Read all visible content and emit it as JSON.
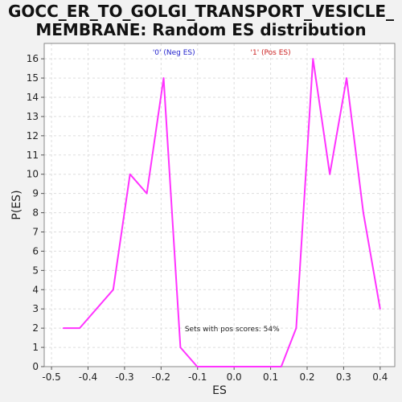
{
  "title_line1": "GOCC_ER_TO_GOLGI_TRANSPORT_VESICLE_",
  "title_line2": "MEMBRANE: Random ES distribution",
  "chart_data": {
    "type": "line",
    "xlabel": "ES",
    "ylabel": "P(ES)",
    "xlim": [
      -0.52,
      0.44
    ],
    "ylim": [
      0,
      16.8
    ],
    "grid": true,
    "x_ticks": [
      -0.5,
      -0.4,
      -0.3,
      -0.2,
      -0.1,
      0.0,
      0.1,
      0.2,
      0.3,
      0.4
    ],
    "x_tick_labels": [
      "-0.5",
      "-0.4",
      "-0.3",
      "-0.2",
      "-0.1",
      "0.0",
      "0.1",
      "0.2",
      "0.3",
      "0.4"
    ],
    "y_ticks": [
      0,
      1,
      2,
      3,
      4,
      5,
      6,
      7,
      8,
      9,
      10,
      11,
      12,
      13,
      14,
      15,
      16
    ],
    "legend": [
      {
        "label": "'0' (Neg ES)",
        "color": "#2222cc"
      },
      {
        "label": "'1' (Pos ES)",
        "color": "#cc2222"
      }
    ],
    "annotation": "Sets with pos scores: 54%",
    "series": [
      {
        "color": "#ff33ff",
        "x": [
          -0.468,
          -0.423,
          -0.331,
          -0.285,
          -0.239,
          -0.193,
          -0.147,
          -0.101,
          -0.055,
          0.0,
          0.037,
          0.083,
          0.129,
          0.17,
          0.216,
          0.262,
          0.308,
          0.354,
          0.4
        ],
        "y": [
          2,
          2,
          4,
          10,
          9,
          15,
          1,
          0,
          0,
          0,
          0,
          0,
          0,
          2,
          16,
          10,
          15,
          8,
          3
        ]
      }
    ]
  }
}
